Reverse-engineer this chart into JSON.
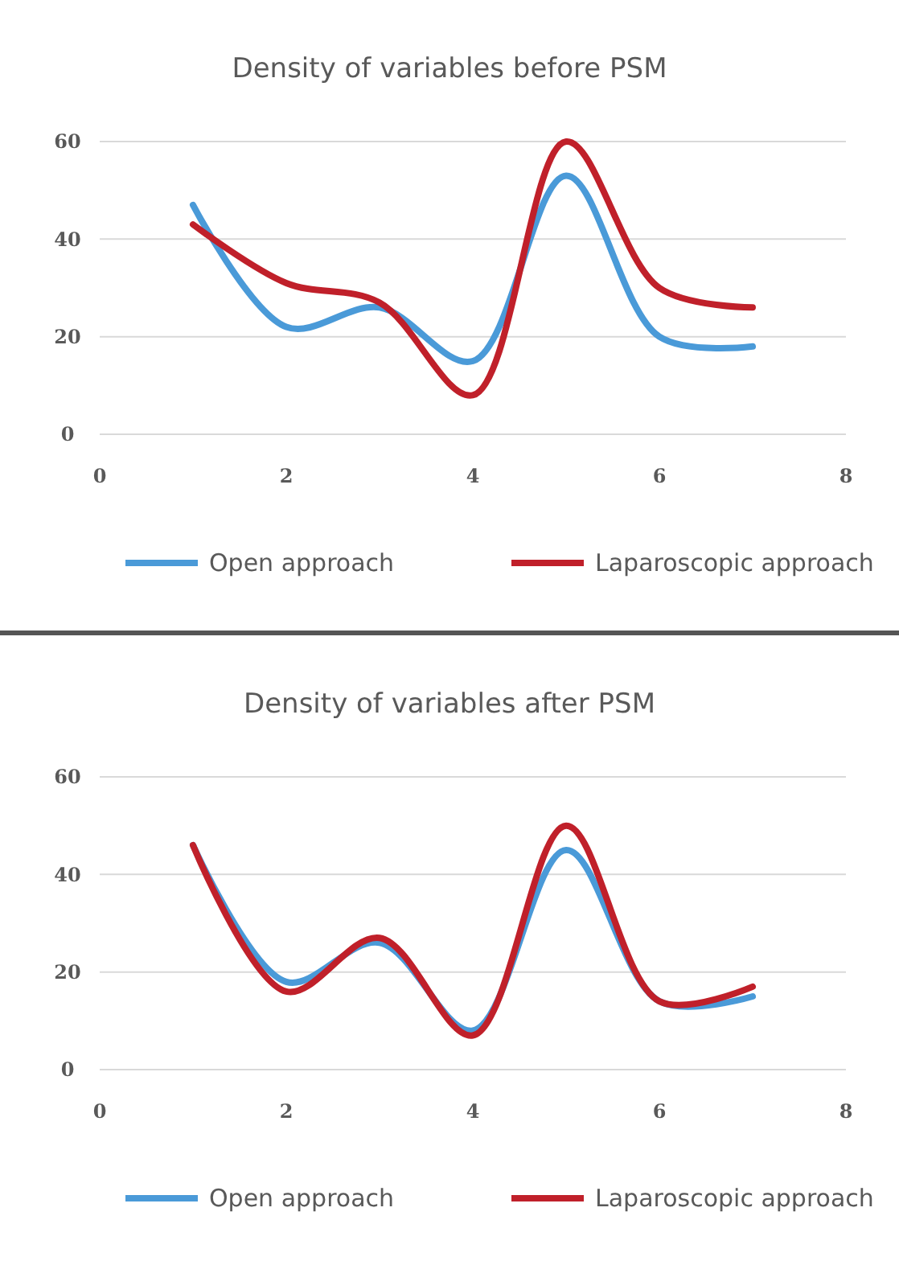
{
  "chart_data": [
    {
      "type": "line",
      "title": "Density of variables before PSM",
      "x": [
        1,
        2,
        3,
        4,
        5,
        6,
        7
      ],
      "xlim": [
        0,
        8
      ],
      "xticks": [
        0,
        2,
        4,
        6,
        8
      ],
      "ylim": [
        0,
        60
      ],
      "yticks": [
        0,
        20,
        40,
        60
      ],
      "grid": "y",
      "legend": "bottom",
      "marker": "none",
      "line_style": "solid",
      "series": [
        {
          "name": "Open approach",
          "color": "#4a9ad8",
          "values": [
            47,
            22,
            26,
            15,
            53,
            20,
            18
          ]
        },
        {
          "name": "Laparoscopic approach",
          "color": "#c0202a",
          "values": [
            43,
            31,
            27,
            8,
            60,
            30,
            26
          ]
        }
      ]
    },
    {
      "type": "line",
      "title": "Density of variables after PSM",
      "x": [
        1,
        2,
        3,
        4,
        5,
        6,
        7
      ],
      "xlim": [
        0,
        8
      ],
      "xticks": [
        0,
        2,
        4,
        6,
        8
      ],
      "ylim": [
        0,
        60
      ],
      "yticks": [
        0,
        20,
        40,
        60
      ],
      "grid": "y",
      "legend": "bottom",
      "marker": "none",
      "line_style": "solid",
      "series": [
        {
          "name": "Open approach",
          "color": "#4a9ad8",
          "values": [
            46,
            18,
            26,
            8,
            45,
            14,
            15
          ]
        },
        {
          "name": "Laparoscopic approach",
          "color": "#c0202a",
          "values": [
            46,
            16,
            27,
            7,
            50,
            14,
            17
          ]
        }
      ]
    }
  ]
}
